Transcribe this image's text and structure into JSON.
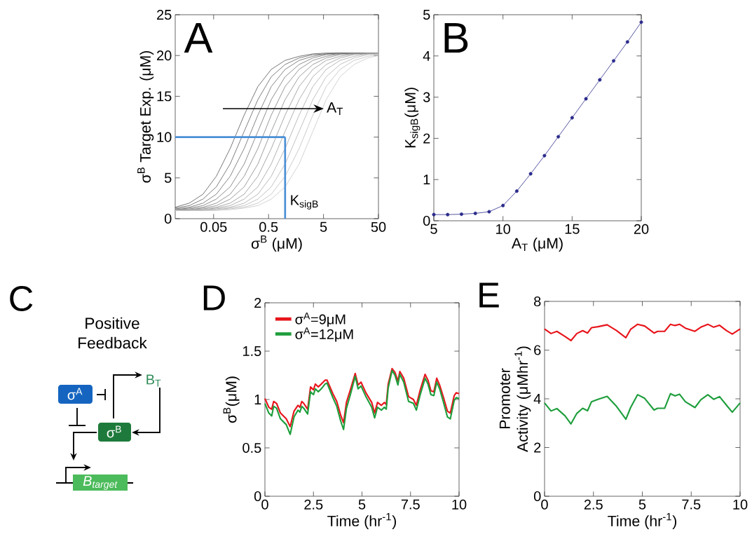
{
  "chart_data": [
    {
      "type": "line",
      "title": "A",
      "xlabel": "σ$^{B}$ (μM)",
      "ylabel": "σ$^{B}$ Target Exp. (μM)",
      "log": "x",
      "xlim": [
        0.01,
        50
      ],
      "xticks": [
        0.05,
        0.5,
        5,
        50
      ],
      "ylim": [
        0,
        25
      ],
      "yticks": [
        0,
        5,
        10,
        15,
        20,
        25
      ],
      "annotations": [
        "A$_{T}$",
        {
          "text": "K$_{sigB}$",
          "x": 1,
          "y": 2
        }
      ],
      "x": [
        0.01,
        0.018,
        0.032,
        0.056,
        0.1,
        0.18,
        0.32,
        0.56,
        1,
        1.8,
        3.2,
        5.6,
        10,
        18,
        32,
        50
      ],
      "series": [
        {
          "color": "#555555",
          "values": [
            1.4,
            1.9,
            3.0,
            5.2,
            8.6,
            12.7,
            16.2,
            18.3,
            19.4,
            19.9,
            20.2,
            20.3,
            20.3,
            20.3,
            20.3,
            20.3
          ]
        },
        {
          "color": "#5e5e5e",
          "values": [
            1.3,
            1.6,
            2.4,
            3.9,
            6.7,
            10.7,
            14.6,
            17.4,
            18.9,
            19.7,
            20.1,
            20.2,
            20.3,
            20.3,
            20.3,
            20.3
          ]
        },
        {
          "color": "#686868",
          "values": [
            1.2,
            1.4,
            1.9,
            3.0,
            5.2,
            8.6,
            12.7,
            16.2,
            18.3,
            19.4,
            19.9,
            20.2,
            20.3,
            20.3,
            20.3,
            20.3
          ]
        },
        {
          "color": "#727272",
          "values": [
            1.1,
            1.3,
            1.6,
            2.4,
            3.9,
            6.7,
            10.7,
            14.6,
            17.4,
            18.9,
            19.7,
            20.1,
            20.2,
            20.3,
            20.3,
            20.3
          ]
        },
        {
          "color": "#7c7c7c",
          "values": [
            1.1,
            1.2,
            1.4,
            1.9,
            3.0,
            5.2,
            8.6,
            12.7,
            16.2,
            18.3,
            19.4,
            19.9,
            20.2,
            20.3,
            20.3,
            20.3
          ]
        },
        {
          "color": "#878787",
          "values": [
            1.0,
            1.1,
            1.3,
            1.6,
            2.4,
            3.9,
            6.7,
            10.7,
            14.6,
            17.4,
            18.9,
            19.7,
            20.1,
            20.2,
            20.3,
            20.3
          ]
        },
        {
          "color": "#929292",
          "values": [
            1.0,
            1.1,
            1.2,
            1.4,
            1.9,
            3.0,
            5.2,
            8.6,
            12.7,
            16.2,
            18.3,
            19.4,
            19.9,
            20.2,
            20.3,
            20.3
          ]
        },
        {
          "color": "#9d9d9d",
          "values": [
            1.0,
            1.0,
            1.1,
            1.3,
            1.6,
            2.4,
            3.9,
            6.7,
            10.7,
            14.6,
            17.4,
            18.9,
            19.7,
            20.1,
            20.2,
            20.3
          ]
        },
        {
          "color": "#a8a8a8",
          "values": [
            1.0,
            1.0,
            1.1,
            1.2,
            1.4,
            1.9,
            3.0,
            5.2,
            8.6,
            12.7,
            16.2,
            18.3,
            19.4,
            19.9,
            20.2,
            20.2
          ]
        },
        {
          "color": "#b3b3b3",
          "values": [
            1.0,
            1.0,
            1.0,
            1.1,
            1.3,
            1.6,
            2.4,
            3.9,
            6.7,
            10.7,
            14.6,
            17.4,
            18.9,
            19.7,
            20.1,
            20.2
          ]
        },
        {
          "color": "#bebebe",
          "values": [
            1.0,
            1.0,
            1.0,
            1.1,
            1.2,
            1.4,
            1.9,
            3.0,
            5.2,
            8.6,
            12.7,
            16.2,
            18.3,
            19.4,
            19.9,
            20.1
          ]
        },
        {
          "color": "#c8c8c8",
          "values": [
            1.0,
            1.0,
            1.0,
            1.0,
            1.1,
            1.3,
            1.6,
            2.4,
            3.9,
            6.7,
            10.7,
            14.6,
            17.4,
            18.9,
            19.7,
            20.0
          ]
        }
      ],
      "ref_lines": [
        {
          "axis": "y",
          "value": 10,
          "color": "#4a8fd6"
        },
        {
          "axis": "x",
          "value": 1,
          "color": "#4a8fd6"
        }
      ]
    },
    {
      "type": "line",
      "title": "B",
      "xlabel": "A$_{T}$ (μM)",
      "ylabel": "K$_{sigB}$(μM)",
      "marker": "circle",
      "xlim": [
        5,
        20
      ],
      "xticks": [
        5,
        10,
        15,
        20
      ],
      "ylim": [
        0,
        5
      ],
      "yticks": [
        0,
        1,
        2,
        3,
        4,
        5
      ],
      "x": [
        5,
        6,
        7,
        8,
        9,
        10,
        11,
        12,
        13,
        14,
        15,
        16,
        17,
        18,
        19,
        20
      ],
      "series": [
        {
          "color": "#2b2b8c",
          "values": [
            0.15,
            0.15,
            0.16,
            0.18,
            0.22,
            0.37,
            0.72,
            1.14,
            1.58,
            2.04,
            2.5,
            2.96,
            3.42,
            3.88,
            4.34,
            4.82
          ]
        }
      ]
    },
    {
      "type": "other",
      "title": "C",
      "annotations": [
        "Positive Feedback",
        "σ$^{A}$",
        "σ$^{B}$",
        "B$_{T}$",
        "B$_{target}$"
      ]
    },
    {
      "type": "line",
      "title": "D",
      "xlabel": "Time (hr$^{-1}$)",
      "ylabel": "σ$^{B}$(μM)",
      "legend": "top left",
      "xlim": [
        0,
        10
      ],
      "xticks": [
        0,
        2.5,
        5,
        7.5,
        10
      ],
      "ylim": [
        0,
        2
      ],
      "yticks": [
        0,
        0.5,
        1,
        1.5,
        2
      ],
      "x": [
        0,
        0.2,
        0.35,
        0.45,
        0.6,
        0.8,
        1.0,
        1.1,
        1.3,
        1.5,
        1.7,
        1.8,
        1.9,
        2.0,
        2.2,
        2.35,
        2.5,
        2.6,
        2.75,
        2.9,
        3.1,
        3.2,
        3.5,
        3.7,
        3.9,
        4.05,
        4.2,
        4.4,
        4.65,
        4.8,
        4.95,
        5.2,
        5.5,
        5.65,
        5.8,
        6.0,
        6.15,
        6.25,
        6.35,
        6.55,
        6.7,
        6.85,
        6.95,
        7.15,
        7.4,
        7.65,
        7.8,
        8.0,
        8.25,
        8.4,
        8.55,
        8.7,
        8.85,
        9.0,
        9.2,
        9.4,
        9.55,
        9.75,
        9.85,
        10
      ],
      "series": [
        {
          "name": "σ$^{A}$=9μM",
          "color": "#e8141b",
          "values": [
            1.01,
            0.92,
            0.9,
            0.98,
            0.96,
            0.86,
            0.82,
            0.8,
            0.72,
            0.88,
            0.94,
            0.92,
            0.98,
            0.96,
            0.9,
            1.13,
            1.1,
            1.16,
            1.13,
            1.16,
            1.2,
            1.2,
            1.06,
            0.98,
            0.84,
            0.76,
            0.97,
            1.1,
            1.27,
            1.15,
            1.18,
            1.07,
            0.97,
            0.86,
            0.97,
            0.94,
            0.97,
            0.95,
            1.16,
            1.32,
            1.28,
            1.19,
            1.29,
            1.22,
            1.03,
            1.0,
            0.94,
            1.1,
            1.26,
            1.2,
            1.09,
            1.08,
            1.22,
            1.15,
            1.02,
            0.88,
            0.86,
            1.04,
            1.07,
            1.06
          ]
        },
        {
          "name": "σ$^{A}$=12μM",
          "color": "#1e9e3c",
          "values": [
            0.96,
            0.86,
            0.83,
            0.93,
            0.91,
            0.8,
            0.76,
            0.74,
            0.64,
            0.82,
            0.89,
            0.87,
            0.93,
            0.91,
            0.85,
            1.08,
            1.05,
            1.11,
            1.08,
            1.11,
            1.16,
            1.17,
            1.02,
            0.93,
            0.78,
            0.69,
            0.91,
            1.05,
            1.24,
            1.11,
            1.14,
            1.03,
            0.92,
            0.81,
            0.92,
            0.89,
            0.92,
            0.9,
            1.12,
            1.3,
            1.25,
            1.15,
            1.26,
            1.18,
            0.98,
            0.96,
            0.89,
            1.05,
            1.22,
            1.16,
            1.05,
            1.04,
            1.18,
            1.11,
            0.97,
            0.82,
            0.8,
            0.99,
            1.02,
            1.01
          ]
        }
      ]
    },
    {
      "type": "line",
      "title": "E",
      "xlabel": "Time (hr$^{-1}$)",
      "ylabel": "Promoter Activity (μMhr$^{-1}$)",
      "xlim": [
        0,
        10
      ],
      "xticks": [
        0,
        2.5,
        5,
        7.5,
        10
      ],
      "ylim": [
        0,
        8
      ],
      "yticks": [
        0,
        2,
        4,
        6,
        8
      ],
      "x": [
        0,
        0.33,
        0.63,
        1.05,
        1.35,
        1.65,
        1.95,
        2.2,
        2.4,
        2.73,
        3.2,
        3.68,
        4.16,
        4.4,
        4.76,
        5.12,
        5.6,
        5.78,
        6.14,
        6.44,
        6.67,
        6.9,
        7.2,
        7.69,
        7.99,
        8.35,
        8.65,
        8.95,
        9.3,
        9.6,
        10
      ],
      "series": [
        {
          "color": "#e8141b",
          "values": [
            6.87,
            6.68,
            6.77,
            6.56,
            6.39,
            6.68,
            6.8,
            6.7,
            6.92,
            6.96,
            7.04,
            6.8,
            6.51,
            6.85,
            7.06,
            6.99,
            6.7,
            6.77,
            6.77,
            7.06,
            7.01,
            7.06,
            6.9,
            6.77,
            6.94,
            7.06,
            6.94,
            7.02,
            6.8,
            6.66,
            6.87
          ]
        },
        {
          "color": "#1e9e3c",
          "values": [
            3.83,
            3.5,
            3.6,
            3.3,
            2.97,
            3.4,
            3.61,
            3.51,
            3.88,
            3.98,
            4.1,
            3.69,
            3.16,
            3.64,
            4.17,
            4.02,
            3.54,
            3.61,
            3.61,
            4.21,
            4.12,
            4.19,
            3.88,
            3.64,
            3.96,
            4.17,
            3.98,
            4.09,
            3.74,
            3.45,
            3.83
          ]
        }
      ]
    }
  ]
}
